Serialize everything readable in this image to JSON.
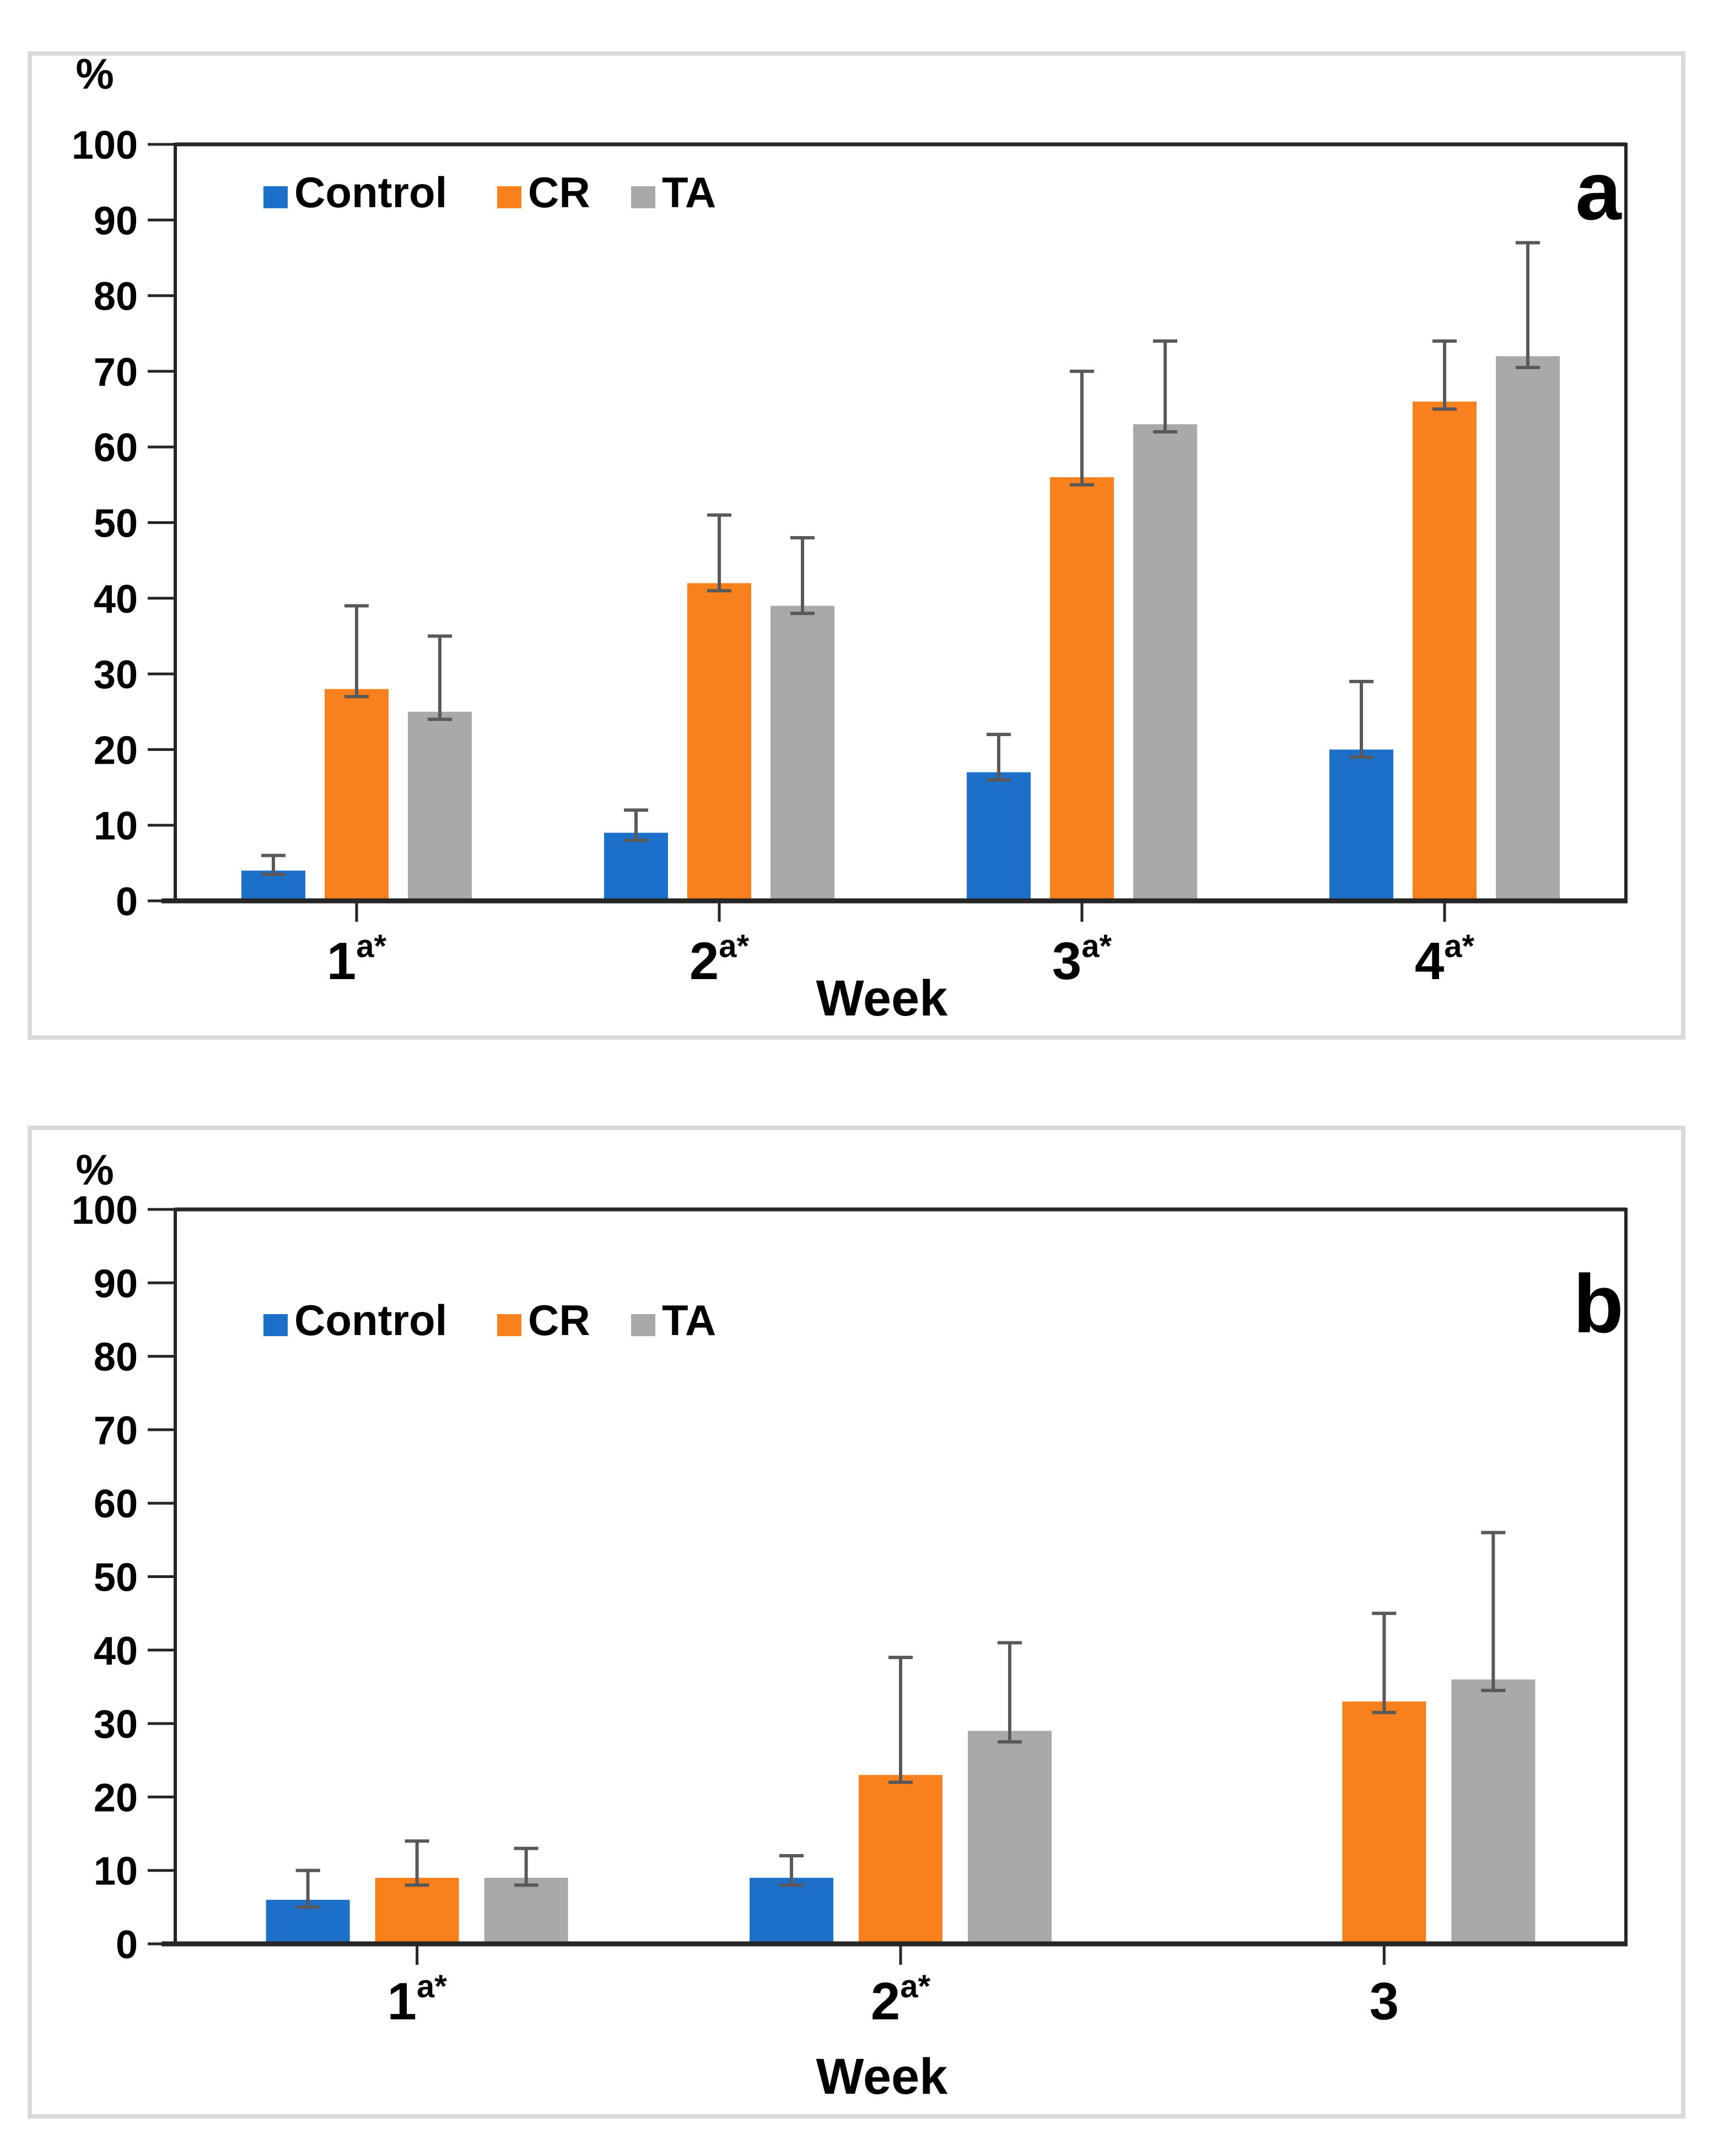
{
  "figure_title": "",
  "colors": {
    "control": "#1D70C8",
    "cr": "#F8811E",
    "ta": "#A9A9A9",
    "error_bar": "#595959",
    "axis": "#262626",
    "panel_border": "#D9D9D9",
    "text": "#000000"
  },
  "chart_data": [
    {
      "panel_label": "a",
      "type": "bar",
      "title": "",
      "ylabel": "%",
      "xlabel": "Week",
      "ylim": [
        0,
        100
      ],
      "ytick_step": 10,
      "grid": false,
      "legend_position": "top-left-inside",
      "legend": [
        "Control",
        "CR",
        "TA"
      ],
      "categories": [
        "1a*",
        "2a*",
        "3a*",
        "4a*"
      ],
      "categories_rich": [
        {
          "base": "1",
          "sup": "a*"
        },
        {
          "base": "2",
          "sup": "a*"
        },
        {
          "base": "3",
          "sup": "a*"
        },
        {
          "base": "4",
          "sup": "a*"
        }
      ],
      "series": [
        {
          "name": "Control",
          "color": "#1D70C8",
          "values": [
            4,
            9,
            17,
            20
          ],
          "error_low": [
            3.5,
            8,
            16,
            19
          ],
          "error_high": [
            6,
            12,
            22,
            29
          ]
        },
        {
          "name": "CR",
          "color": "#F8811E",
          "values": [
            28,
            42,
            56,
            66
          ],
          "error_low": [
            27,
            41,
            55,
            65
          ],
          "error_high": [
            39,
            51,
            70,
            74
          ]
        },
        {
          "name": "TA",
          "color": "#A9A9A9",
          "values": [
            25,
            39,
            63,
            72
          ],
          "error_low": [
            24,
            38,
            62,
            70.5
          ],
          "error_high": [
            35,
            48,
            74,
            87
          ]
        }
      ]
    },
    {
      "panel_label": "b",
      "type": "bar",
      "title": "",
      "ylabel": "%",
      "xlabel": "Week",
      "ylim": [
        0,
        100
      ],
      "ytick_step": 10,
      "grid": false,
      "legend_position": "top-left-inside",
      "legend": [
        "Control",
        "CR",
        "TA"
      ],
      "categories": [
        "1a*",
        "2a*",
        "3"
      ],
      "categories_rich": [
        {
          "base": "1",
          "sup": "a*"
        },
        {
          "base": "2",
          "sup": "a*"
        },
        {
          "base": "3",
          "sup": ""
        }
      ],
      "series": [
        {
          "name": "Control",
          "color": "#1D70C8",
          "values": [
            6,
            9,
            null
          ],
          "error_low": [
            5,
            8,
            null
          ],
          "error_high": [
            10,
            12,
            null
          ]
        },
        {
          "name": "CR",
          "color": "#F8811E",
          "values": [
            9,
            23,
            33
          ],
          "error_low": [
            8,
            22,
            31.5
          ],
          "error_high": [
            14,
            39,
            45
          ]
        },
        {
          "name": "TA",
          "color": "#A9A9A9",
          "values": [
            9,
            29,
            36
          ],
          "error_low": [
            8,
            27.5,
            34.5
          ],
          "error_high": [
            13,
            41,
            56
          ]
        }
      ]
    }
  ]
}
